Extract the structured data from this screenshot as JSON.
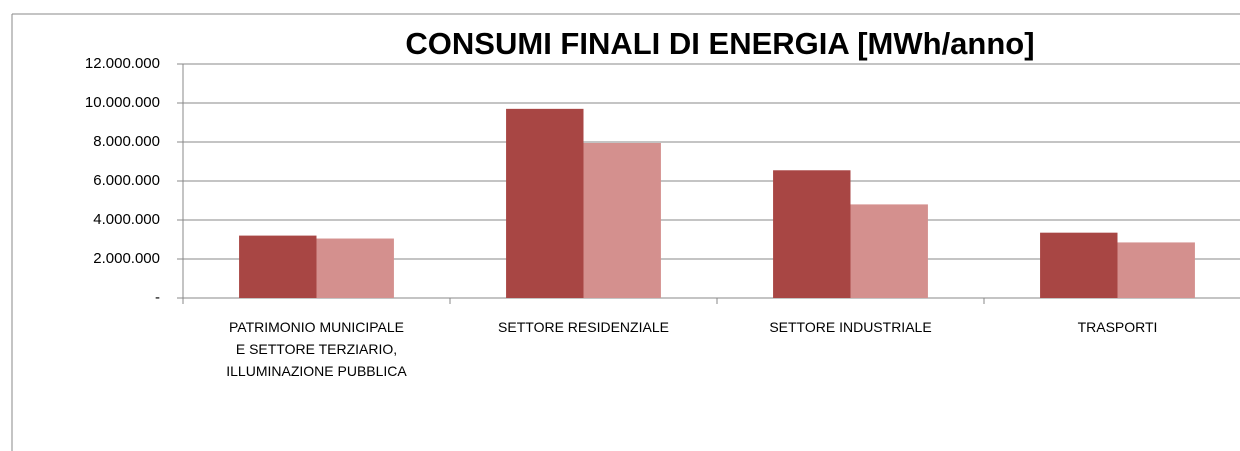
{
  "chart_data": {
    "type": "bar",
    "title": "CONSUMI FINALI DI ENERGIA [MWh/anno]",
    "categories": [
      "PATRIMONIO MUNICIPALE E SETTORE TERZIARIO, ILLUMINAZIONE PUBBLICA",
      "SETTORE RESIDENZIALE",
      "SETTORE INDUSTRIALE",
      "TRASPORTI"
    ],
    "series": [
      {
        "color": "#a84644",
        "values": [
          3200000,
          9700000,
          6550000,
          3350000
        ]
      },
      {
        "color": "#d4908e",
        "values": [
          3050000,
          7950000,
          4800000,
          2850000
        ]
      }
    ],
    "ylim": [
      0,
      12000000
    ],
    "yticks": [
      {
        "value": 0,
        "label": "-"
      },
      {
        "value": 2000000,
        "label": "2.000.000"
      },
      {
        "value": 4000000,
        "label": "4.000.000"
      },
      {
        "value": 6000000,
        "label": "6.000.000"
      },
      {
        "value": 8000000,
        "label": "8.000.000"
      },
      {
        "value": 10000000,
        "label": "10.000.000"
      },
      {
        "value": 12000000,
        "label": "12.000.000"
      }
    ],
    "grid": true
  }
}
